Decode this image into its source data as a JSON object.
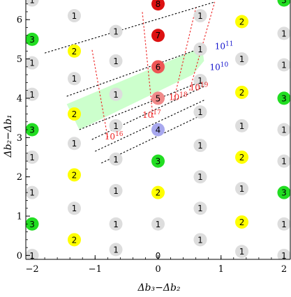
{
  "chart_data": {
    "type": "scatter",
    "xlabel": "Δb₃−Δb₂",
    "ylabel": "Δb₂−Δb₁",
    "xlim": [
      -2.1,
      2.1
    ],
    "ylim": [
      -0.1,
      6.5
    ],
    "xticks": [
      -2,
      -1,
      0,
      1,
      2
    ],
    "yticks": [
      0,
      1,
      2,
      3,
      4,
      5,
      6
    ],
    "xtick_labels": [
      "−2",
      "−1",
      "0",
      "1",
      "2"
    ],
    "ytick_labels": [
      "0",
      "1",
      "2",
      "3",
      "4",
      "5",
      "6"
    ],
    "grid": false,
    "colors": {
      "gray": "#dddddd",
      "yellow": "#ffff00",
      "green": "#22dd22",
      "red": "#dd1111",
      "red_mid": "#ee5555",
      "red_light": "#f08a8a",
      "blue_light": "#a8a8ee",
      "band": "#ccffcc",
      "dotted_red": "#ee2222",
      "dotted_black": "#000000",
      "annot_red": "#ee2222",
      "annot_blue": "#1010cc"
    },
    "points": [
      {
        "x": -2,
        "y": 6.5,
        "label": "1",
        "c": "gray"
      },
      {
        "x": -2,
        "y": 5.5,
        "label": "3",
        "c": "green"
      },
      {
        "x": -2,
        "y": 4.9,
        "label": "1",
        "c": "gray"
      },
      {
        "x": -2,
        "y": 4.1,
        "label": "1",
        "c": "gray"
      },
      {
        "x": -2,
        "y": 3.2,
        "label": "3",
        "c": "green"
      },
      {
        "x": -2,
        "y": 2.5,
        "label": "1",
        "c": "gray"
      },
      {
        "x": -2,
        "y": 1.6,
        "label": "1",
        "c": "gray"
      },
      {
        "x": -2,
        "y": 0.8,
        "label": "3",
        "c": "green"
      },
      {
        "x": -2,
        "y": 0.0,
        "label": "1",
        "c": "gray"
      },
      {
        "x": -1.33,
        "y": 6.1,
        "label": "1",
        "c": "gray"
      },
      {
        "x": -1.33,
        "y": 5.2,
        "label": "2",
        "c": "yellow"
      },
      {
        "x": -1.33,
        "y": 4.5,
        "label": "1",
        "c": "gray"
      },
      {
        "x": -1.33,
        "y": 3.6,
        "label": "2",
        "c": "yellow"
      },
      {
        "x": -1.33,
        "y": 2.85,
        "label": "1",
        "c": "gray"
      },
      {
        "x": -1.33,
        "y": 2.05,
        "label": "2",
        "c": "yellow"
      },
      {
        "x": -1.33,
        "y": 1.2,
        "label": "1",
        "c": "gray"
      },
      {
        "x": -1.33,
        "y": 0.4,
        "label": "2",
        "c": "yellow"
      },
      {
        "x": -0.67,
        "y": 5.7,
        "label": "1",
        "c": "gray"
      },
      {
        "x": -0.67,
        "y": 4.95,
        "label": "1",
        "c": "gray"
      },
      {
        "x": -0.67,
        "y": 4.1,
        "label": "1",
        "c": "gray"
      },
      {
        "x": -0.67,
        "y": 3.3,
        "label": "1",
        "c": "gray"
      },
      {
        "x": -0.67,
        "y": 2.45,
        "label": "1",
        "c": "gray"
      },
      {
        "x": -0.67,
        "y": 1.65,
        "label": "1",
        "c": "gray"
      },
      {
        "x": -0.67,
        "y": 0.8,
        "label": "1",
        "c": "gray"
      },
      {
        "x": -0.67,
        "y": 0.15,
        "label": "1",
        "c": "gray"
      },
      {
        "x": 0,
        "y": 6.4,
        "label": "8",
        "c": "red"
      },
      {
        "x": 0,
        "y": 5.6,
        "label": "7",
        "c": "red"
      },
      {
        "x": 0,
        "y": 4.8,
        "label": "6",
        "c": "red_mid"
      },
      {
        "x": 0,
        "y": 4.0,
        "label": "5",
        "c": "red_light"
      },
      {
        "x": 0,
        "y": 3.2,
        "label": "4",
        "c": "blue_light"
      },
      {
        "x": 0,
        "y": 2.4,
        "label": "3",
        "c": "green"
      },
      {
        "x": 0,
        "y": 1.6,
        "label": "2",
        "c": "yellow"
      },
      {
        "x": 0,
        "y": 0.8,
        "label": "1",
        "c": "gray"
      },
      {
        "x": 0,
        "y": 0.0,
        "label": "0",
        "c": "white"
      },
      {
        "x": 0.67,
        "y": 6.1,
        "label": "1",
        "c": "gray"
      },
      {
        "x": 0.67,
        "y": 5.25,
        "label": "1",
        "c": "gray"
      },
      {
        "x": 0.67,
        "y": 4.45,
        "label": "1",
        "c": "gray"
      },
      {
        "x": 0.67,
        "y": 3.65,
        "label": "1",
        "c": "gray"
      },
      {
        "x": 0.67,
        "y": 2.8,
        "label": "1",
        "c": "gray"
      },
      {
        "x": 0.67,
        "y": 2.0,
        "label": "1",
        "c": "gray"
      },
      {
        "x": 0.67,
        "y": 1.2,
        "label": "1",
        "c": "gray"
      },
      {
        "x": 0.67,
        "y": 0.4,
        "label": "1",
        "c": "gray"
      },
      {
        "x": 1.33,
        "y": 5.95,
        "label": "2",
        "c": "yellow"
      },
      {
        "x": 1.33,
        "y": 5.0,
        "label": "1",
        "c": "gray"
      },
      {
        "x": 1.33,
        "y": 4.15,
        "label": "2",
        "c": "yellow"
      },
      {
        "x": 1.33,
        "y": 3.3,
        "label": "1",
        "c": "gray"
      },
      {
        "x": 1.33,
        "y": 2.5,
        "label": "2",
        "c": "yellow"
      },
      {
        "x": 1.33,
        "y": 1.7,
        "label": "1",
        "c": "gray"
      },
      {
        "x": 1.33,
        "y": 0.85,
        "label": "2",
        "c": "yellow"
      },
      {
        "x": 1.33,
        "y": 0.1,
        "label": "1",
        "c": "gray"
      },
      {
        "x": 2,
        "y": 6.5,
        "label": "3",
        "c": "green"
      },
      {
        "x": 2,
        "y": 5.65,
        "label": "1",
        "c": "gray"
      },
      {
        "x": 2,
        "y": 4.85,
        "label": "1",
        "c": "gray"
      },
      {
        "x": 2,
        "y": 4.0,
        "label": "3",
        "c": "green"
      },
      {
        "x": 2,
        "y": 3.2,
        "label": "1",
        "c": "gray"
      },
      {
        "x": 2,
        "y": 2.4,
        "label": "1",
        "c": "gray"
      },
      {
        "x": 2,
        "y": 1.6,
        "label": "3",
        "c": "green"
      },
      {
        "x": 2,
        "y": 0.8,
        "label": "1",
        "c": "gray"
      },
      {
        "x": 2,
        "y": 0.0,
        "label": "1",
        "c": "gray"
      }
    ],
    "band": [
      [
        -1.25,
        3.2
      ],
      [
        -1.45,
        3.85
      ],
      [
        0.7,
        5.3
      ],
      [
        0.73,
        4.95
      ],
      [
        0.55,
        4.6
      ]
    ],
    "black_dotted_lines": [
      {
        "from": [
          -1.8,
          5.15
        ],
        "to": [
          0.9,
          6.45
        ]
      },
      {
        "from": [
          -1.45,
          4.05
        ],
        "to": [
          0.73,
          5.3
        ]
      },
      {
        "from": [
          -1.25,
          3.2
        ],
        "to": [
          0.73,
          4.45
        ]
      },
      {
        "from": [
          -1.05,
          2.95
        ],
        "to": [
          0.73,
          4.3
        ]
      },
      {
        "from": [
          -1.0,
          2.65
        ],
        "to": [
          0.73,
          3.95
        ]
      },
      {
        "from": [
          -0.9,
          2.35
        ],
        "to": [
          0.73,
          3.6
        ]
      }
    ],
    "red_dotted_lines": [
      {
        "from": [
          -0.8,
          3.0
        ],
        "to": [
          -1.05,
          5.25
        ]
      },
      {
        "from": [
          -0.08,
          3.5
        ],
        "to": [
          -0.25,
          6.2
        ]
      },
      {
        "from": [
          0.25,
          3.95
        ],
        "to": [
          0.6,
          6.3
        ]
      },
      {
        "from": [
          0.5,
          4.2
        ],
        "to": [
          0.9,
          6.45
        ]
      }
    ],
    "annotations": [
      {
        "x": -0.85,
        "y": 2.95,
        "text": "10",
        "sup": "16",
        "c": "annot_red"
      },
      {
        "x": -0.25,
        "y": 3.5,
        "text": "10",
        "sup": "17",
        "c": "annot_red"
      },
      {
        "x": 0.17,
        "y": 3.95,
        "text": "10",
        "sup": "18",
        "c": "annot_red"
      },
      {
        "x": 0.5,
        "y": 4.2,
        "text": "10",
        "sup": "19",
        "c": "annot_red"
      },
      {
        "x": 0.82,
        "y": 4.72,
        "text": "10",
        "sup": "10",
        "c": "annot_blue"
      },
      {
        "x": 0.9,
        "y": 5.25,
        "text": "10",
        "sup": "11",
        "c": "annot_blue"
      }
    ]
  }
}
